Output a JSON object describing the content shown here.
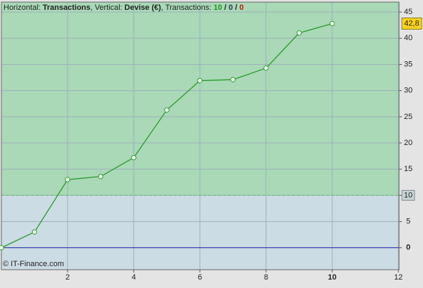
{
  "chart_data": {
    "type": "line",
    "title_parts": [
      {
        "text": "Horizontal: "
      },
      {
        "text": "Transactions",
        "bold": true
      },
      {
        "text": ", Vertical: "
      },
      {
        "text": "Devise (€)",
        "bold": true
      },
      {
        "text": ", Transactions: "
      },
      {
        "text": "10",
        "bold": true,
        "color": "#1a9a1a"
      },
      {
        "text": " / ",
        "bold": true
      },
      {
        "text": "0",
        "bold": true,
        "color": "#333355"
      },
      {
        "text": " / ",
        "bold": true
      },
      {
        "text": "0",
        "bold": true,
        "color": "#cc1111"
      }
    ],
    "x": [
      0,
      1,
      2,
      3,
      4,
      5,
      6,
      7,
      8,
      9,
      10
    ],
    "series": [
      {
        "color": "#2a9a2a",
        "values": [
          0,
          3,
          13,
          13.6,
          17.2,
          26.3,
          31.9,
          32.1,
          34.3,
          41,
          42.8
        ],
        "value_labels": [
          null,
          null,
          null,
          null,
          null,
          null,
          null,
          null,
          null,
          null,
          "42,8"
        ]
      }
    ],
    "xlim": [
      0,
      12
    ],
    "xticks": [
      2,
      4,
      6,
      8,
      10,
      12
    ],
    "highlight_xtick": 10,
    "ylim": [
      -4.2,
      46.9
    ],
    "yticks": [
      0,
      5,
      10,
      15,
      20,
      25,
      30,
      35,
      40,
      45
    ],
    "highlight_ytick": 0,
    "threshold": 10,
    "above_color": "#a9d9b7",
    "below_color": "#ccdce4",
    "grid": true,
    "copyright": "© IT-Finance.com"
  }
}
